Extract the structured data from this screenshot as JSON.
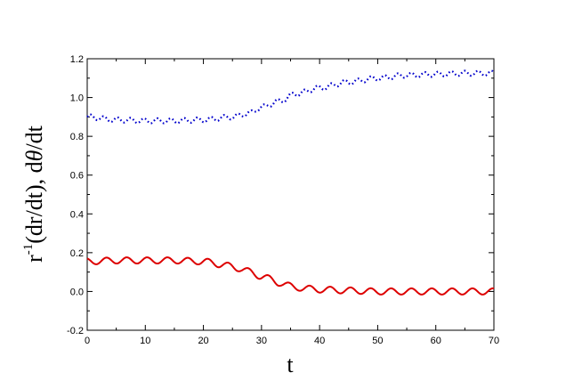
{
  "chart_data": {
    "type": "line",
    "title": "",
    "xlabel": "t",
    "ylabel_parts": {
      "r": "r",
      "exp": "-1",
      "rest": "(dr/dt),   d",
      "theta": "θ",
      "tail": "/dt"
    },
    "xlim": [
      0,
      70
    ],
    "ylim": [
      -0.2,
      1.2
    ],
    "x_ticks": [
      "0",
      "10",
      "20",
      "30",
      "40",
      "50",
      "60",
      "70"
    ],
    "y_ticks": [
      "-0.2",
      "0.0",
      "0.2",
      "0.4",
      "0.6",
      "0.8",
      "1.0",
      "1.2"
    ],
    "grid": false,
    "legend": "none",
    "series": [
      {
        "style": "dotted",
        "color": "#0000cc",
        "x": [
          0,
          5,
          10,
          15,
          20,
          25,
          28,
          30,
          33,
          36,
          40,
          45,
          50,
          55,
          60,
          65,
          70
        ],
        "y": [
          0.9,
          0.885,
          0.88,
          0.88,
          0.885,
          0.9,
          0.92,
          0.95,
          0.98,
          1.02,
          1.05,
          1.08,
          1.1,
          1.115,
          1.12,
          1.125,
          1.125
        ],
        "osc_amplitude": 0.013,
        "osc_period": 2.3
      },
      {
        "style": "solid",
        "color": "#dd0000",
        "x": [
          0,
          5,
          10,
          15,
          20,
          23,
          26,
          30,
          33,
          36,
          40,
          45,
          50,
          55,
          60,
          65,
          70
        ],
        "y": [
          0.155,
          0.16,
          0.16,
          0.16,
          0.155,
          0.14,
          0.12,
          0.08,
          0.045,
          0.02,
          0.01,
          0.005,
          0.0,
          0.0,
          0.0,
          0.0,
          0.0
        ],
        "osc_amplitude": 0.016,
        "osc_period": 3.5,
        "osc_phase": 1.9
      }
    ]
  }
}
